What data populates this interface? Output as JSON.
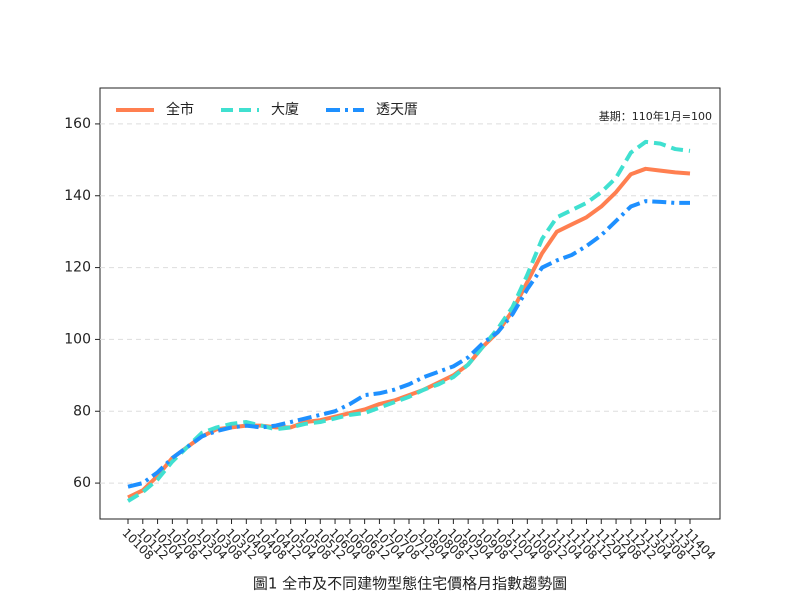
{
  "chart_data": {
    "type": "line",
    "title": "圖1 全市及不同建物型態住宅價格月指數趨勢圖",
    "annotation": "基期：110年1月=100",
    "categories": [
      "10108",
      "10112",
      "10204",
      "10208",
      "10212",
      "10304",
      "10308",
      "10312",
      "10404",
      "10408",
      "10412",
      "10504",
      "10508",
      "10512",
      "10604",
      "10608",
      "10612",
      "10704",
      "10708",
      "10712",
      "10804",
      "10808",
      "10812",
      "10904",
      "10908",
      "10912",
      "11004",
      "11008",
      "11012",
      "11104",
      "11108",
      "11112",
      "11204",
      "11208",
      "11212",
      "11304",
      "11308",
      "11312",
      "11404"
    ],
    "series": [
      {
        "name": "全市",
        "color": "#ff7f50",
        "dash": "solid",
        "values": [
          56,
          58,
          62,
          67,
          70,
          73,
          75,
          75.5,
          76,
          76,
          75.5,
          75.5,
          77,
          77.5,
          78.5,
          79.5,
          80.5,
          82,
          83,
          84.5,
          86,
          88,
          90,
          93,
          98,
          102,
          108,
          116,
          124,
          130,
          132,
          134,
          137,
          141,
          146,
          147.5,
          147,
          146.5,
          146.2
        ]
      },
      {
        "name": "大廈",
        "color": "#40e0d0",
        "dash": "dashed",
        "values": [
          55,
          57.5,
          61,
          66,
          70,
          74,
          75.5,
          76.5,
          77,
          76,
          75,
          75.5,
          76.5,
          77,
          78,
          79,
          79.5,
          81,
          82.5,
          84,
          86,
          87.5,
          89.5,
          93,
          98,
          103,
          109,
          118,
          128,
          134,
          136,
          138,
          141,
          145,
          152,
          155,
          154.5,
          153,
          152.5
        ]
      },
      {
        "name": "透天厝",
        "color": "#1e90ff",
        "dash": "dashdot",
        "values": [
          59,
          60,
          63,
          67,
          70,
          73,
          74.5,
          75.5,
          76,
          75.5,
          76,
          77,
          78,
          79,
          80,
          82,
          84.5,
          85,
          86,
          87.5,
          89.5,
          91,
          92.5,
          95,
          99,
          102,
          107,
          114,
          120,
          122,
          123.5,
          126,
          129,
          133,
          137,
          138.5,
          138.3,
          138,
          138
        ]
      }
    ],
    "ylim": [
      50,
      170
    ],
    "yticks": [
      60,
      80,
      100,
      120,
      140,
      160
    ],
    "grid": true,
    "legend": "upper left"
  }
}
